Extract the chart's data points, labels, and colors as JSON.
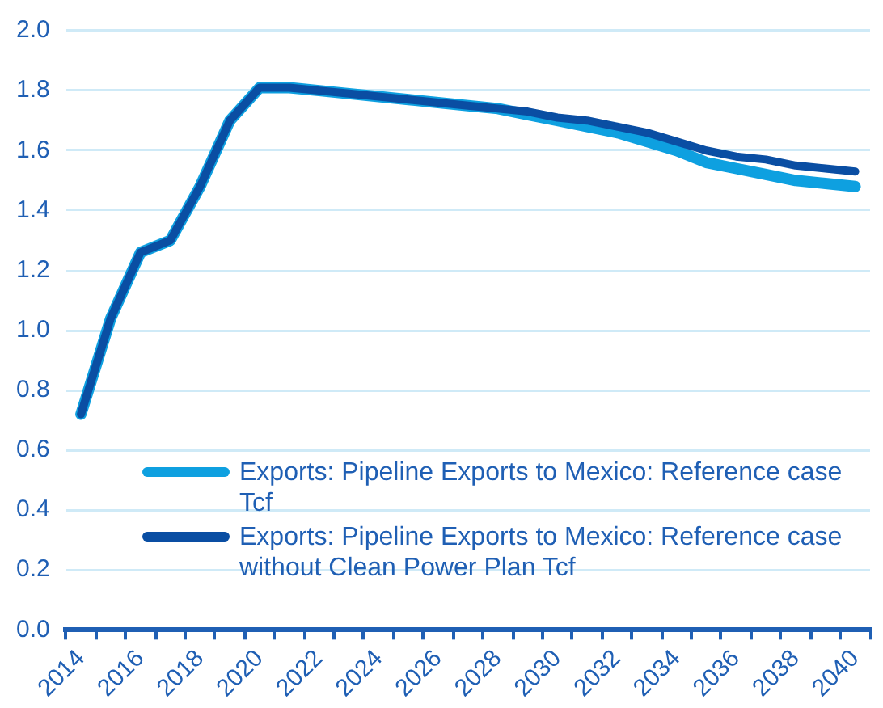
{
  "chart_data": {
    "type": "line",
    "categories": [
      "2014",
      null,
      "2016",
      null,
      "2018",
      null,
      "2020",
      null,
      "2022",
      null,
      "2024",
      null,
      "2026",
      null,
      "2028",
      null,
      "2030",
      null,
      "2032",
      null,
      "2034",
      null,
      "2036",
      null,
      "2038",
      null,
      "2040"
    ],
    "series": [
      {
        "name": "Exports: Pipeline Exports to Mexico: Reference case Tcf",
        "color": "#0ea0e0",
        "values": [
          0.72,
          1.04,
          1.26,
          1.3,
          1.48,
          1.7,
          1.81,
          1.81,
          1.8,
          1.79,
          1.78,
          1.77,
          1.76,
          1.75,
          1.74,
          1.72,
          1.7,
          1.68,
          1.66,
          1.63,
          1.6,
          1.56,
          1.54,
          1.52,
          1.5,
          1.49,
          1.48
        ]
      },
      {
        "name": "Exports: Pipeline Exports to Mexico: Reference case without Clean Power Plan Tcf",
        "color": "#0a4ea3",
        "values": [
          0.72,
          1.04,
          1.26,
          1.3,
          1.48,
          1.7,
          1.81,
          1.81,
          1.8,
          1.79,
          1.78,
          1.77,
          1.76,
          1.75,
          1.74,
          1.73,
          1.71,
          1.7,
          1.68,
          1.66,
          1.63,
          1.6,
          1.58,
          1.57,
          1.55,
          1.54,
          1.53
        ]
      }
    ],
    "ylim": [
      0,
      2
    ],
    "yticks": [
      {
        "value": 0,
        "label": "0.0"
      },
      0.2,
      0.4,
      0.6,
      0.8,
      {
        "value": 1,
        "label": "1.0"
      },
      1.2,
      1.4,
      1.6,
      1.8,
      {
        "value": 2,
        "label": "2.0"
      }
    ],
    "grid": "y",
    "legend": "bottom",
    "marker": "none",
    "line_style": "solid"
  }
}
